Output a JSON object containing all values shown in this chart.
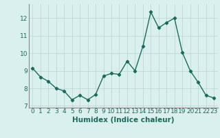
{
  "x": [
    0,
    1,
    2,
    3,
    4,
    5,
    6,
    7,
    8,
    9,
    10,
    11,
    12,
    13,
    14,
    15,
    16,
    17,
    18,
    19,
    20,
    21,
    22,
    23
  ],
  "y": [
    9.15,
    8.65,
    8.4,
    8.0,
    7.85,
    7.35,
    7.6,
    7.35,
    7.65,
    8.7,
    8.85,
    8.8,
    9.55,
    9.0,
    10.4,
    12.35,
    11.45,
    11.75,
    12.0,
    10.05,
    9.0,
    8.35,
    7.6,
    7.45
  ],
  "xlabel": "Humidex (Indice chaleur)",
  "xlim": [
    -0.5,
    23.5
  ],
  "ylim": [
    6.9,
    12.8
  ],
  "yticks": [
    7,
    8,
    9,
    10,
    11,
    12
  ],
  "xticks": [
    0,
    1,
    2,
    3,
    4,
    5,
    6,
    7,
    8,
    9,
    10,
    11,
    12,
    13,
    14,
    15,
    16,
    17,
    18,
    19,
    20,
    21,
    22,
    23
  ],
  "line_color": "#1a6b5a",
  "marker": "D",
  "marker_size": 2.2,
  "line_width": 1.0,
  "bg_color": "#d9f0ef",
  "grid_color": "#b8d4d0",
  "tick_color": "#1a6b5a",
  "label_color": "#1a6b5a",
  "xlabel_fontsize": 7.5,
  "tick_fontsize": 6.5
}
